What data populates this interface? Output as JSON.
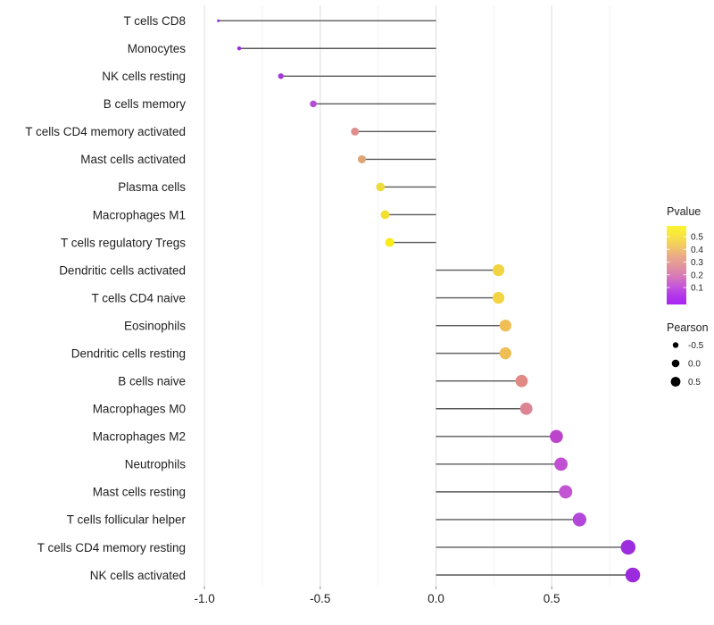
{
  "figure": {
    "background": "#ffffff",
    "text_color": "#1f1f1f",
    "segment_color": "#595959",
    "grid_major_color": "#e3e3e3",
    "grid_minor_color": "#f2f2f2",
    "tick_mark_color": "#8c8c8c"
  },
  "chart_data": {
    "type": "scatter",
    "variant": "lollipop",
    "title": "",
    "xlabel": "",
    "ylabel": "",
    "grid": "vertical-only",
    "categories": [
      "T cells CD8",
      "Monocytes",
      "NK cells resting",
      "B cells memory",
      "T cells CD4 memory activated",
      "Mast cells activated",
      "Plasma cells",
      "Macrophages M1",
      "T cells regulatory  Tregs",
      "Dendritic cells activated",
      "T cells CD4 naive",
      "Eosinophils",
      "Dendritic cells resting",
      "B cells naive",
      "Macrophages M0",
      "Macrophages M2",
      "Neutrophils",
      "Mast cells resting",
      "T cells follicular helper",
      "T cells CD4 memory resting",
      "NK cells activated"
    ],
    "series": [
      {
        "name": "Pearson",
        "values": [
          -0.94,
          -0.85,
          -0.67,
          -0.53,
          -0.35,
          -0.32,
          -0.24,
          -0.22,
          -0.2,
          0.27,
          0.27,
          0.3,
          0.3,
          0.37,
          0.39,
          0.52,
          0.54,
          0.56,
          0.62,
          0.83,
          0.85
        ]
      }
    ],
    "point_colors": [
      "#8E2BD6",
      "#9A2CDB",
      "#A238D8",
      "#B44CD6",
      "#DF8E8E",
      "#DFA474",
      "#EDDC3C",
      "#F2E030",
      "#F8EC1A",
      "#F2D341",
      "#F2D341",
      "#EFBE55",
      "#EFBE55",
      "#E18A85",
      "#DC8494",
      "#BC44CC",
      "#C14FD2",
      "#C355D4",
      "#B247DA",
      "#9D2EDE",
      "#9D2BDE"
    ],
    "baseline": 0.0,
    "xlim": [
      -1.05,
      0.93
    ],
    "x_ticks": [
      "-1.0",
      "-0.5",
      "0.0",
      "0.5"
    ],
    "x_tick_values": [
      -1.0,
      -0.5,
      0.0,
      0.5
    ],
    "x_minor_tick_values": [
      -0.75,
      -0.25,
      0.25,
      0.75
    ],
    "legend_position": "right",
    "legend": {
      "pvalue": {
        "title": "Pvalue",
        "tick_labels": [
          "0.5",
          "0.4",
          "0.3",
          "0.2",
          "0.1"
        ],
        "tick_values": [
          0.5,
          0.4,
          0.3,
          0.2,
          0.1
        ],
        "gradient_top_to_bottom": [
          {
            "offset": 0.0,
            "color": "#FCF431"
          },
          {
            "offset": 0.1,
            "color": "#F9E83B"
          },
          {
            "offset": 0.25,
            "color": "#F2CB62"
          },
          {
            "offset": 0.4,
            "color": "#E9A88A"
          },
          {
            "offset": 0.52,
            "color": "#E2929F"
          },
          {
            "offset": 0.65,
            "color": "#D678BA"
          },
          {
            "offset": 0.78,
            "color": "#C353DC"
          },
          {
            "offset": 0.9,
            "color": "#B134EC"
          },
          {
            "offset": 1.0,
            "color": "#A826F4"
          }
        ]
      },
      "pearson": {
        "title": "Pearson",
        "tick_labels": [
          "-0.5",
          "0.0",
          "0.5"
        ],
        "tick_values": [
          -0.5,
          0.0,
          0.5
        ],
        "dot_color": "#000000"
      }
    }
  }
}
